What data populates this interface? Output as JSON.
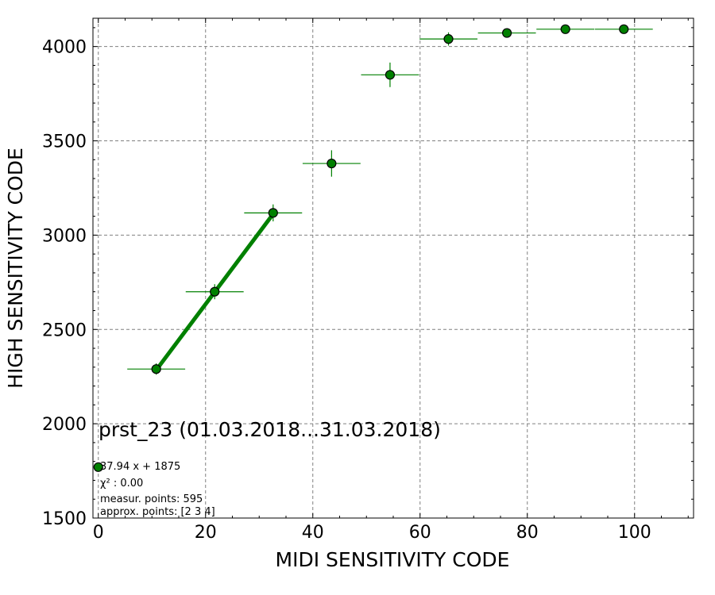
{
  "chart_data": {
    "type": "scatter",
    "xlabel": "MIDI SENSITIVITY CODE",
    "ylabel": "HIGH SENSITIVITY CODE",
    "xlim": [
      -1,
      111
    ],
    "ylim": [
      1500,
      4150
    ],
    "x_ticks": [
      0,
      20,
      40,
      60,
      80,
      100
    ],
    "y_ticks": [
      1500,
      2000,
      2500,
      3000,
      3500,
      4000
    ],
    "grid": true,
    "colors": {
      "points": "#008000",
      "fit": "#008000",
      "edge": "#000000",
      "grid": "#808080"
    },
    "series": [
      {
        "x": [
          0,
          10.8,
          21.7,
          32.6,
          43.5,
          54.4,
          65.3,
          76.2,
          87.1,
          98.0
        ],
        "y": [
          1770,
          2290,
          2700,
          3118,
          3380,
          3850,
          4040,
          4072,
          4092,
          4092
        ],
        "xerr": [
          0,
          5.4,
          5.4,
          5.4,
          5.4,
          5.4,
          5.4,
          5.4,
          5.4,
          5.4
        ],
        "yerr": [
          0,
          30,
          40,
          45,
          70,
          65,
          35,
          25,
          20,
          20
        ]
      }
    ],
    "fit": {
      "x": [
        10.8,
        32.6
      ],
      "slope": 37.94,
      "intercept": 1875
    },
    "annotations": {
      "title": "prst_23 (01.03.2018...31.03.2018)",
      "fit_text": "37.94 x + 1875",
      "chi2_text": "χ² : 0.00",
      "points_text": "measur. points: 595",
      "approx_text": "approx. points: [2 3 4]"
    }
  }
}
